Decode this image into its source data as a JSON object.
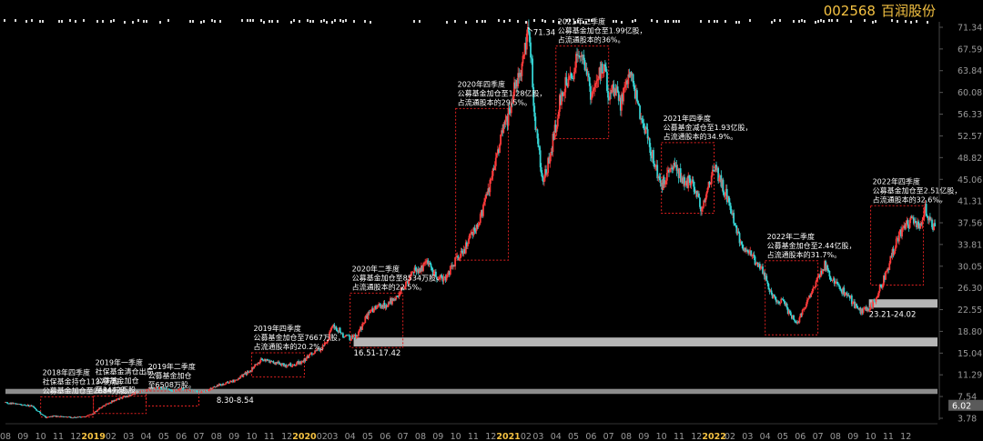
{
  "header": {
    "stock_code": "002568",
    "stock_name": "百润股份"
  },
  "colors": {
    "background": "#000000",
    "up": "#ff3b3b",
    "down": "#35d3d3",
    "box": "#e02020",
    "annotation": "#ffffff",
    "axis_text": "#9a9a9a",
    "title": "#f5c242",
    "support_band": "#8c8c8c"
  },
  "chart_data": {
    "type": "line",
    "title": "",
    "xlabel": "",
    "ylabel": "",
    "ylim": [
      3.78,
      71.34
    ],
    "grid": false,
    "y_ticks": [
      "71.34",
      "67.59",
      "63.84",
      "60.08",
      "56.33",
      "52.57",
      "48.82",
      "45.06",
      "41.31",
      "37.56",
      "33.81",
      "30.05",
      "26.30",
      "22.55",
      "18.80",
      "15.04",
      "11.29",
      "7.54",
      "3.78"
    ],
    "price_marker": "6.02",
    "x_ticks": [
      {
        "t": 0.0,
        "label": "08"
      },
      {
        "t": 1.0,
        "label": "09"
      },
      {
        "t": 2.0,
        "label": "10"
      },
      {
        "t": 3.0,
        "label": "11"
      },
      {
        "t": 4.0,
        "label": "12"
      },
      {
        "t": 5.0,
        "label": "2019"
      },
      {
        "t": 6.0,
        "label": "02"
      },
      {
        "t": 7.0,
        "label": "03"
      },
      {
        "t": 8.0,
        "label": "04"
      },
      {
        "t": 9.0,
        "label": "05"
      },
      {
        "t": 10.0,
        "label": "06"
      },
      {
        "t": 11.0,
        "label": "07"
      },
      {
        "t": 12.0,
        "label": "08"
      },
      {
        "t": 13.0,
        "label": "09"
      },
      {
        "t": 14.0,
        "label": "10"
      },
      {
        "t": 15.0,
        "label": "11"
      },
      {
        "t": 16.0,
        "label": "12"
      },
      {
        "t": 17.0,
        "label": "2020"
      },
      {
        "t": 18.0,
        "label": "02"
      },
      {
        "t": 18.6,
        "label": "03"
      },
      {
        "t": 19.6,
        "label": "04"
      },
      {
        "t": 20.6,
        "label": "05"
      },
      {
        "t": 21.6,
        "label": "06"
      },
      {
        "t": 22.6,
        "label": "07"
      },
      {
        "t": 23.6,
        "label": "08"
      },
      {
        "t": 24.6,
        "label": "09"
      },
      {
        "t": 25.6,
        "label": "10"
      },
      {
        "t": 26.6,
        "label": "11"
      },
      {
        "t": 27.6,
        "label": "12"
      },
      {
        "t": 28.6,
        "label": "2021"
      },
      {
        "t": 29.6,
        "label": "02"
      },
      {
        "t": 30.3,
        "label": "03"
      },
      {
        "t": 31.3,
        "label": "04"
      },
      {
        "t": 32.3,
        "label": "05"
      },
      {
        "t": 33.3,
        "label": "06"
      },
      {
        "t": 34.3,
        "label": "07"
      },
      {
        "t": 35.3,
        "label": "08"
      },
      {
        "t": 36.3,
        "label": "09"
      },
      {
        "t": 37.3,
        "label": "10"
      },
      {
        "t": 38.3,
        "label": "11"
      },
      {
        "t": 39.3,
        "label": "12"
      },
      {
        "t": 40.3,
        "label": "2022"
      },
      {
        "t": 41.2,
        "label": "02"
      },
      {
        "t": 42.2,
        "label": "03"
      },
      {
        "t": 43.2,
        "label": "04"
      },
      {
        "t": 44.2,
        "label": "05"
      },
      {
        "t": 45.2,
        "label": "06"
      },
      {
        "t": 46.2,
        "label": "07"
      },
      {
        "t": 47.2,
        "label": "08"
      },
      {
        "t": 48.2,
        "label": "09"
      },
      {
        "t": 49.2,
        "label": "10"
      },
      {
        "t": 50.2,
        "label": "11"
      },
      {
        "t": 51.2,
        "label": "12"
      }
    ],
    "series": [
      {
        "values": [
          [
            0.0,
            6.5
          ],
          [
            0.5,
            6.3
          ],
          [
            1.0,
            6.1
          ],
          [
            1.5,
            5.9
          ],
          [
            2.0,
            4.6
          ],
          [
            2.3,
            3.9
          ],
          [
            2.7,
            4.2
          ],
          [
            3.0,
            4.1
          ],
          [
            3.5,
            4.0
          ],
          [
            4.0,
            3.9
          ],
          [
            4.5,
            4.1
          ],
          [
            5.0,
            4.6
          ],
          [
            5.3,
            5.4
          ],
          [
            5.6,
            6.0
          ],
          [
            6.0,
            6.6
          ],
          [
            6.5,
            7.2
          ],
          [
            7.0,
            7.7
          ],
          [
            7.5,
            8.2
          ],
          [
            8.0,
            8.6
          ],
          [
            8.5,
            9.1
          ],
          [
            9.0,
            8.9
          ],
          [
            9.5,
            8.5
          ],
          [
            10.0,
            8.8
          ],
          [
            10.5,
            8.6
          ],
          [
            11.0,
            8.3
          ],
          [
            11.5,
            8.6
          ],
          [
            12.0,
            9.4
          ],
          [
            12.5,
            9.8
          ],
          [
            13.0,
            10.2
          ],
          [
            13.5,
            11.2
          ],
          [
            14.0,
            12.2
          ],
          [
            14.5,
            13.8
          ],
          [
            15.0,
            13.6
          ],
          [
            15.5,
            13.2
          ],
          [
            16.0,
            12.9
          ],
          [
            16.5,
            13.2
          ],
          [
            17.0,
            13.8
          ],
          [
            17.5,
            15.2
          ],
          [
            18.0,
            15.9
          ],
          [
            18.3,
            17.2
          ],
          [
            18.6,
            19.8
          ],
          [
            19.0,
            18.9
          ],
          [
            19.3,
            17.8
          ],
          [
            19.6,
            17.6
          ],
          [
            20.0,
            17.9
          ],
          [
            20.5,
            21.2
          ],
          [
            21.0,
            22.8
          ],
          [
            21.5,
            23.2
          ],
          [
            22.0,
            24.2
          ],
          [
            22.5,
            25.8
          ],
          [
            23.0,
            27.8
          ],
          [
            23.3,
            29.3
          ],
          [
            23.6,
            29.6
          ],
          [
            24.0,
            30.6
          ],
          [
            24.5,
            28.4
          ],
          [
            25.0,
            27.6
          ],
          [
            25.3,
            29.4
          ],
          [
            25.6,
            31.2
          ],
          [
            26.0,
            32.2
          ],
          [
            26.3,
            34.4
          ],
          [
            26.6,
            36.1
          ],
          [
            26.9,
            38.1
          ],
          [
            27.2,
            40.2
          ],
          [
            27.6,
            44.8
          ],
          [
            28.0,
            50.1
          ],
          [
            28.3,
            53.9
          ],
          [
            28.6,
            56.1
          ],
          [
            28.9,
            60.3
          ],
          [
            29.3,
            64.1
          ],
          [
            29.5,
            66.8
          ],
          [
            29.7,
            71.3
          ],
          [
            29.9,
            65.8
          ],
          [
            30.1,
            55.6
          ],
          [
            30.3,
            49.8
          ],
          [
            30.6,
            45.4
          ],
          [
            30.9,
            48.3
          ],
          [
            31.2,
            52.8
          ],
          [
            31.5,
            58.1
          ],
          [
            31.9,
            61.8
          ],
          [
            32.3,
            63.9
          ],
          [
            32.7,
            67.8
          ],
          [
            33.0,
            64.3
          ],
          [
            33.3,
            59.6
          ],
          [
            33.7,
            62.8
          ],
          [
            34.0,
            65.1
          ],
          [
            34.3,
            59.3
          ],
          [
            34.7,
            61.2
          ],
          [
            35.0,
            58.1
          ],
          [
            35.3,
            61.9
          ],
          [
            35.6,
            64.6
          ],
          [
            35.9,
            58.2
          ],
          [
            36.3,
            55.1
          ],
          [
            36.6,
            50.8
          ],
          [
            37.0,
            47.2
          ],
          [
            37.3,
            43.8
          ],
          [
            37.6,
            46.1
          ],
          [
            38.0,
            48.2
          ],
          [
            38.3,
            46.3
          ],
          [
            38.6,
            44.1
          ],
          [
            39.0,
            45.2
          ],
          [
            39.3,
            42.1
          ],
          [
            39.6,
            40.2
          ],
          [
            40.0,
            43.8
          ],
          [
            40.3,
            47.3
          ],
          [
            40.6,
            45.1
          ],
          [
            41.0,
            42.3
          ],
          [
            41.3,
            39.1
          ],
          [
            41.6,
            35.8
          ],
          [
            42.0,
            33.2
          ],
          [
            42.3,
            32.4
          ],
          [
            42.6,
            31.1
          ],
          [
            43.0,
            29.8
          ],
          [
            43.3,
            27.2
          ],
          [
            43.6,
            24.9
          ],
          [
            44.0,
            24.1
          ],
          [
            44.3,
            23.8
          ],
          [
            44.6,
            21.6
          ],
          [
            45.0,
            20.3
          ],
          [
            45.3,
            21.8
          ],
          [
            45.6,
            24.3
          ],
          [
            46.0,
            26.2
          ],
          [
            46.3,
            28.8
          ],
          [
            46.6,
            30.3
          ],
          [
            47.0,
            27.8
          ],
          [
            47.3,
            26.9
          ],
          [
            47.6,
            25.8
          ],
          [
            48.0,
            24.8
          ],
          [
            48.3,
            23.1
          ],
          [
            48.6,
            22.3
          ],
          [
            49.0,
            22.8
          ],
          [
            49.3,
            23.5
          ],
          [
            49.6,
            25.4
          ],
          [
            50.0,
            28.2
          ],
          [
            50.3,
            30.8
          ],
          [
            50.6,
            34.1
          ],
          [
            51.0,
            36.2
          ],
          [
            51.3,
            37.3
          ],
          [
            51.6,
            38.3
          ],
          [
            52.0,
            37.2
          ],
          [
            52.3,
            40.1
          ],
          [
            52.6,
            37.8
          ],
          [
            52.9,
            36.2
          ]
        ]
      }
    ],
    "peak_label": "71.34",
    "boxes": [
      {
        "t0": 2.0,
        "t1": 5.0,
        "y0": 4.0,
        "y1": 7.5,
        "lines": [
          "2018年四季度",
          "社保基金持仓1137万股，",
          "公募基金加仓至2684万股。"
        ]
      },
      {
        "t0": 5.0,
        "t1": 8.0,
        "y0": 4.6,
        "y1": 7.6,
        "lines": [
          "2019年一季度",
          "社保基金清仓出局，",
          "公募基金加仓",
          "至3442万股。"
        ]
      },
      {
        "t0": 8.0,
        "t1": 11.0,
        "y0": 5.9,
        "y1": 8.5,
        "lines": [
          "2019年二季度",
          "公募基金加仓",
          "至6508万股。"
        ]
      },
      {
        "t0": 14.0,
        "t1": 17.0,
        "y0": 10.9,
        "y1": 15.1,
        "lines": [
          "2019年四季度",
          "公募基金加仓至7667万股，",
          "占流通股本的20.2%。"
        ]
      },
      {
        "t0": 19.6,
        "t1": 22.6,
        "y0": 16.0,
        "y1": 25.4,
        "lines": [
          "2020年二季度",
          "公募基金加仓至8534万股，",
          "占流通股本的22.5%。"
        ]
      },
      {
        "t0": 25.6,
        "t1": 28.6,
        "y0": 31.1,
        "y1": 57.3,
        "lines": [
          "2020年四季度",
          "公募基金加仓至1.28亿股，",
          "占流通股本的29.5%。"
        ]
      },
      {
        "t0": 31.3,
        "t1": 34.3,
        "y0": 52.1,
        "y1": 68.1,
        "lines": [
          "2021年二季度",
          "公募基金加仓至1.99亿股，",
          "占流通股本的36%。"
        ]
      },
      {
        "t0": 37.3,
        "t1": 40.3,
        "y0": 39.2,
        "y1": 51.4,
        "lines": [
          "2021年四季度",
          "公募基金减仓至1.93亿股，",
          "占流通股本的34.9%。"
        ]
      },
      {
        "t0": 43.2,
        "t1": 46.2,
        "y0": 18.2,
        "y1": 31.0,
        "lines": [
          "2022年二季度",
          "公募基金加仓至2.44亿股，",
          "占流通股本的31.7%。"
        ]
      },
      {
        "t0": 49.2,
        "t1": 52.2,
        "y0": 26.8,
        "y1": 40.5,
        "lines": [
          "2022年四季度",
          "公募基金加仓至2.51亿股，",
          "占流通股本的32.6%。"
        ]
      }
    ],
    "support_bands": [
      {
        "label": "8.30-8.54",
        "y0": 8.3,
        "y1": 8.54,
        "t_start": 0.0,
        "t_label": 12.0,
        "color": "#8c8c8c"
      },
      {
        "label": "16.51-17.42",
        "y0": 16.51,
        "y1": 17.42,
        "t_start": 19.8,
        "t_label": 19.8,
        "color": "#b5b5b5"
      },
      {
        "label": "23.21-24.02",
        "y0": 23.21,
        "y1": 24.02,
        "t_start": 49.1,
        "t_label": 49.1,
        "color": "#b5b5b5"
      }
    ]
  }
}
